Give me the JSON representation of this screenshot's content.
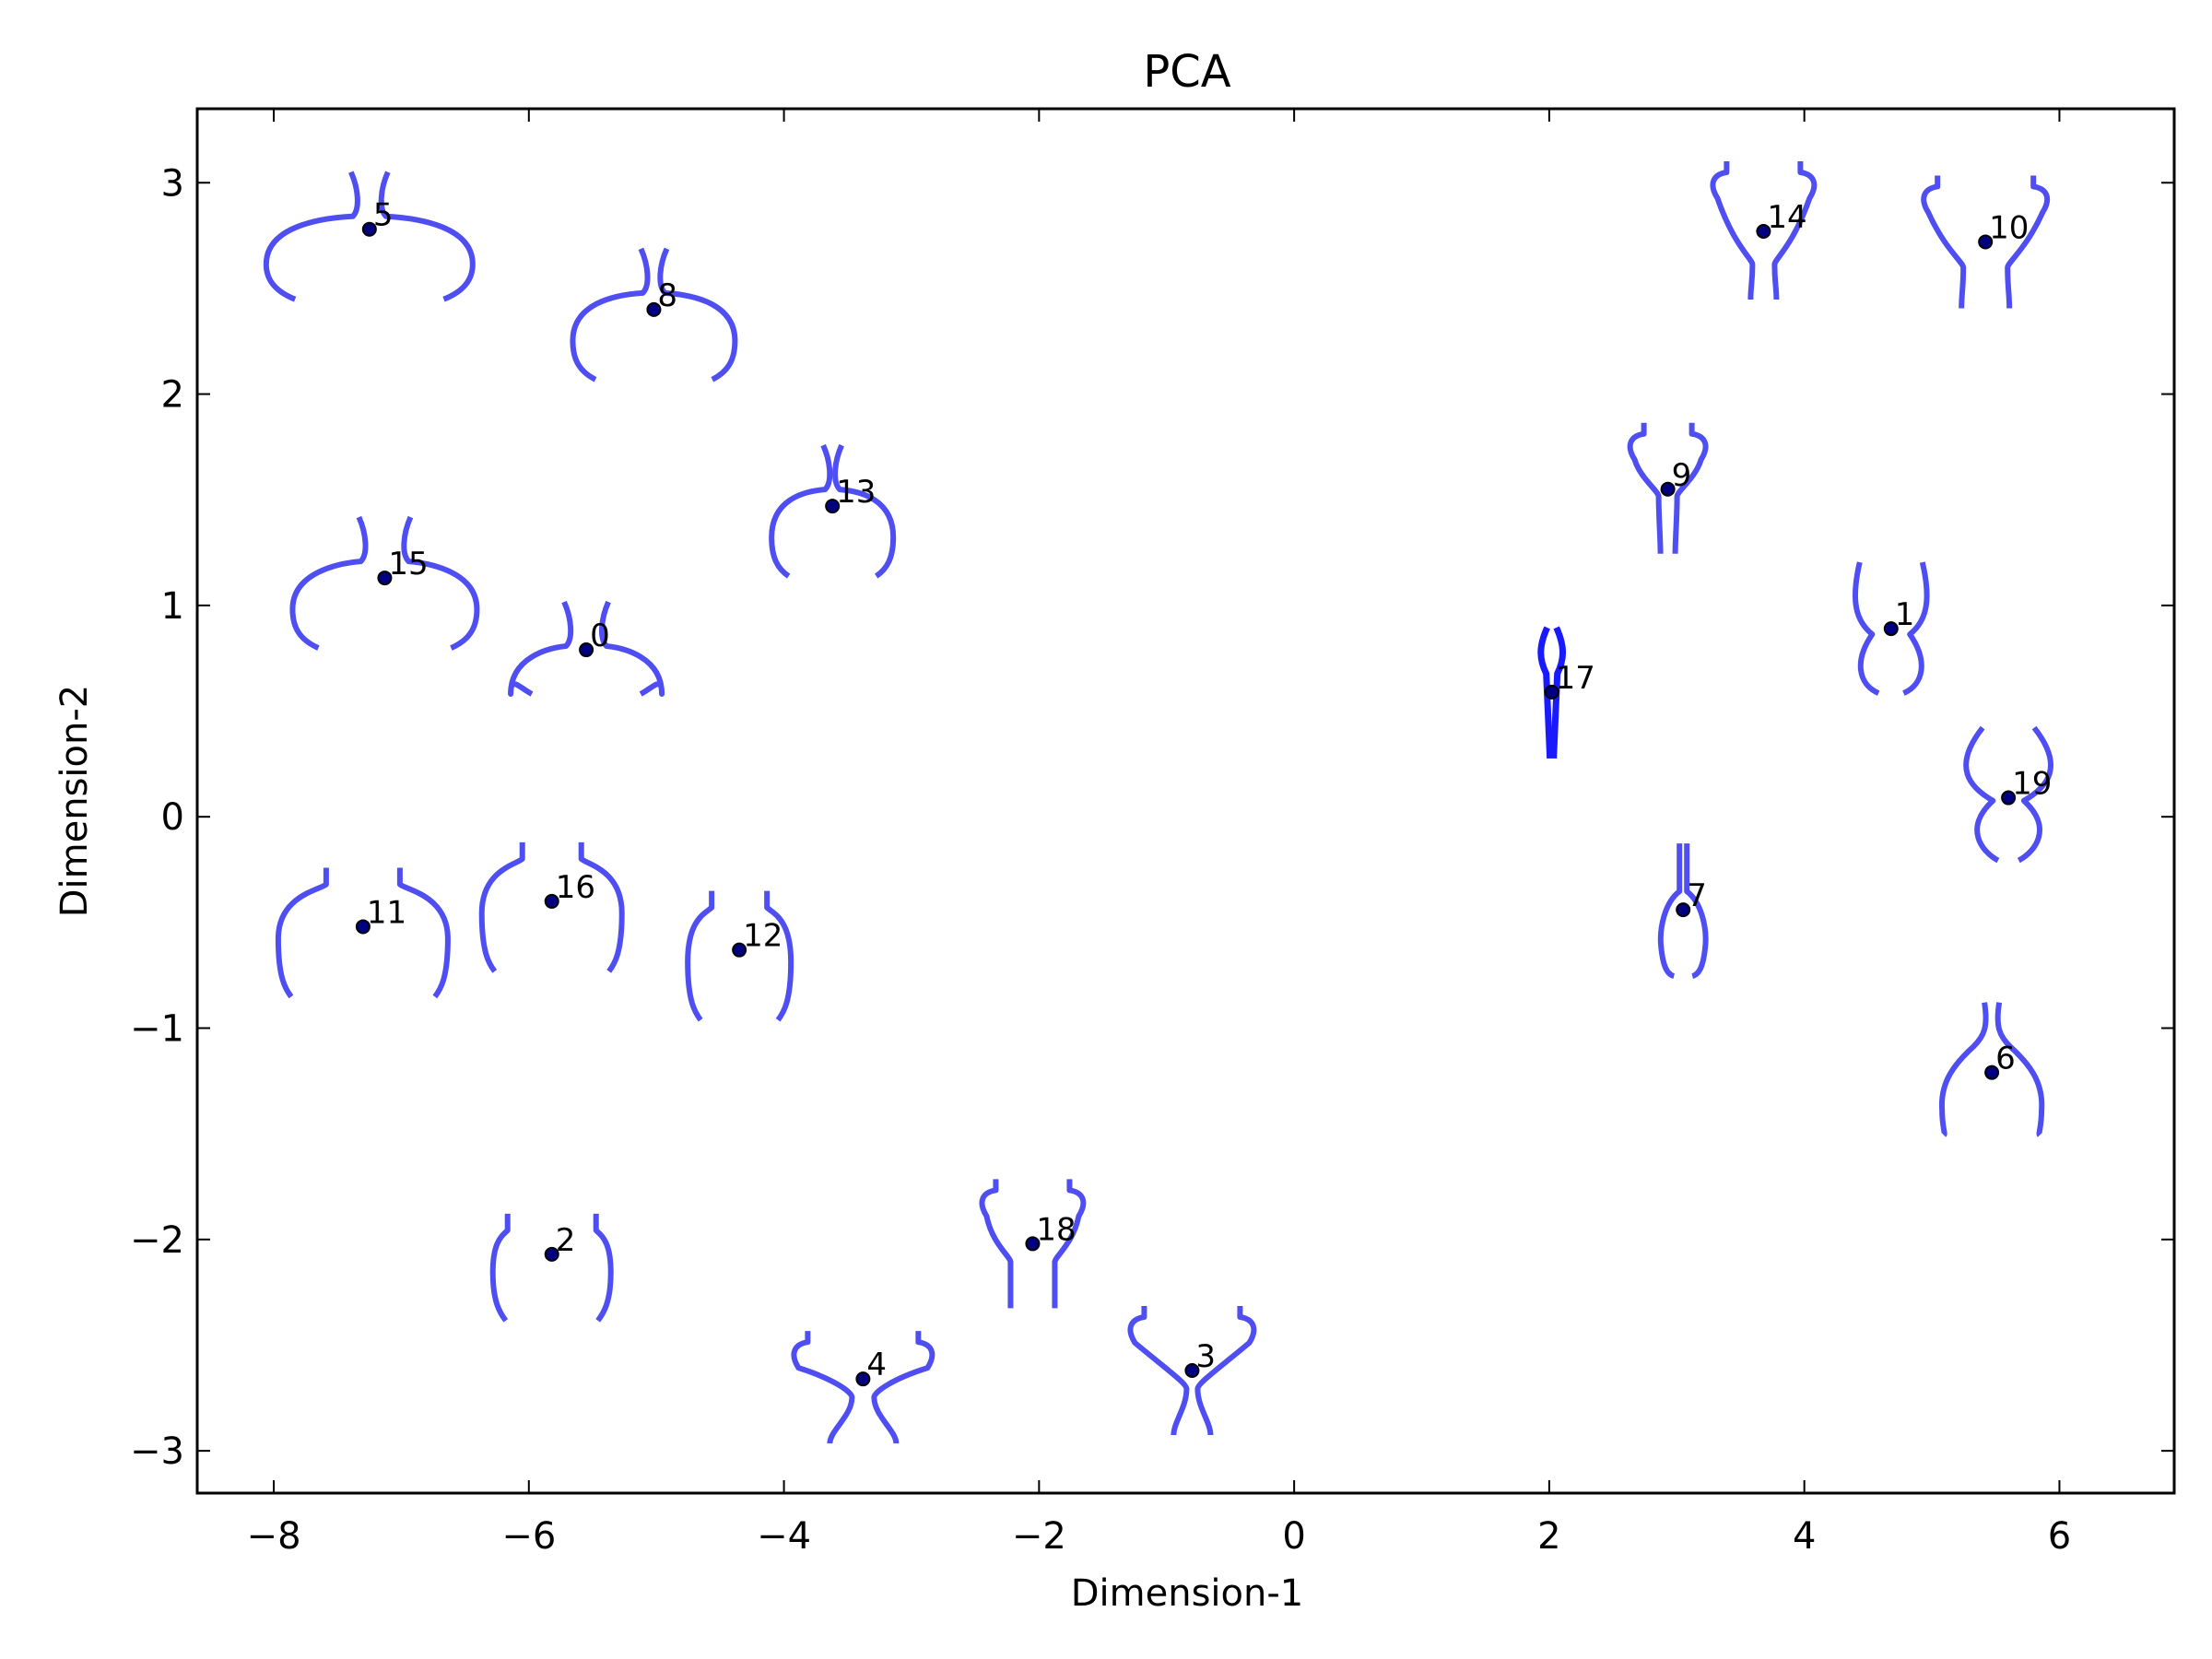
{
  "chart_data": {
    "type": "scatter",
    "title": "PCA",
    "xlabel": "Dimension-1",
    "ylabel": "Dimension-2",
    "xlim": [
      -8.6,
      6.9
    ],
    "ylim": [
      -3.2,
      3.35
    ],
    "xticks": [
      -8,
      -6,
      -4,
      -2,
      0,
      2,
      4,
      6
    ],
    "yticks": [
      -3,
      -2,
      -1,
      0,
      1,
      2,
      3
    ],
    "xtick_labels": [
      "−8",
      "−6",
      "−4",
      "−2",
      "0",
      "2",
      "4",
      "6"
    ],
    "ytick_labels": [
      "−3",
      "−2",
      "−1",
      "0",
      "1",
      "2",
      "3"
    ],
    "grid": false,
    "glyph_color": "#4545f2",
    "point_color": "#000080",
    "points": [
      {
        "label": "0",
        "x": -5.55,
        "y": 0.79
      },
      {
        "label": "1",
        "x": 4.68,
        "y": 0.89
      },
      {
        "label": "2",
        "x": -5.82,
        "y": -2.07
      },
      {
        "label": "3",
        "x": -0.8,
        "y": -2.62
      },
      {
        "label": "4",
        "x": -3.38,
        "y": -2.66
      },
      {
        "label": "5",
        "x": -7.25,
        "y": 2.78
      },
      {
        "label": "6",
        "x": 5.47,
        "y": -1.21
      },
      {
        "label": "7",
        "x": 3.05,
        "y": -0.44
      },
      {
        "label": "8",
        "x": -5.02,
        "y": 2.4
      },
      {
        "label": "9",
        "x": 2.93,
        "y": 1.55
      },
      {
        "label": "10",
        "x": 5.42,
        "y": 2.72
      },
      {
        "label": "11",
        "x": -7.3,
        "y": -0.52
      },
      {
        "label": "12",
        "x": -4.35,
        "y": -0.63
      },
      {
        "label": "13",
        "x": -3.62,
        "y": 1.47
      },
      {
        "label": "14",
        "x": 3.68,
        "y": 2.77
      },
      {
        "label": "15",
        "x": -7.13,
        "y": 1.13
      },
      {
        "label": "16",
        "x": -5.82,
        "y": -0.4
      },
      {
        "label": "17",
        "x": 2.02,
        "y": 0.59
      },
      {
        "label": "18",
        "x": -2.05,
        "y": -2.02
      },
      {
        "label": "19",
        "x": 5.6,
        "y": 0.09
      }
    ]
  }
}
